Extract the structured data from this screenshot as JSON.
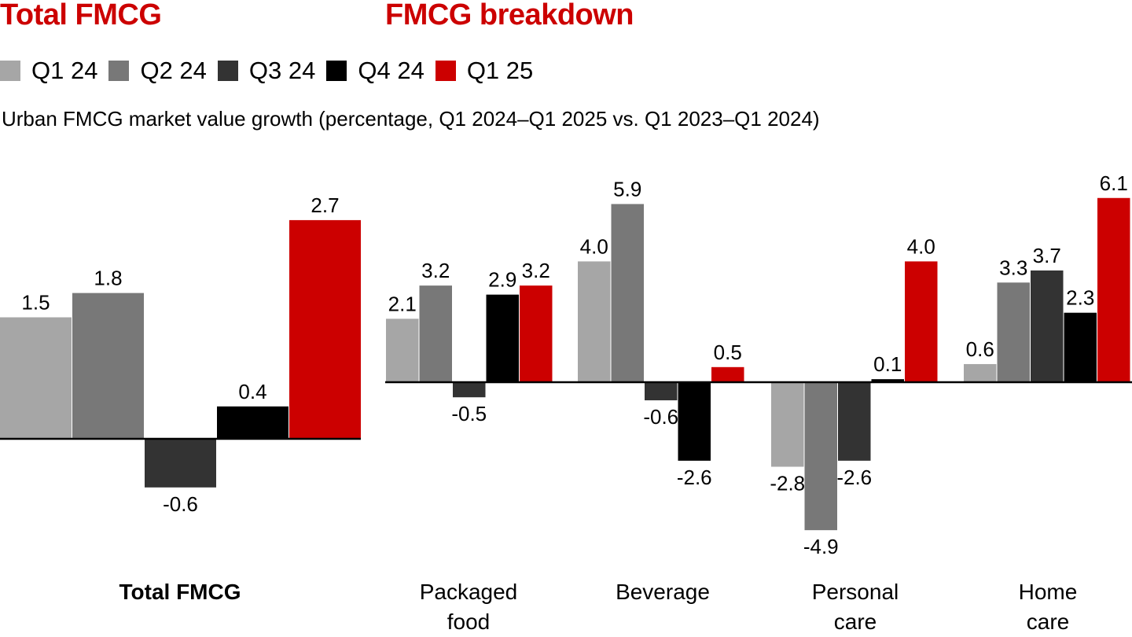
{
  "titles": {
    "left": "Total FMCG",
    "right": "FMCG breakdown"
  },
  "subtitle": "Urban FMCG market value growth (percentage, Q1 2024–Q1 2025 vs. Q1 2023–Q1 2024)",
  "legend": [
    {
      "label": "Q1 24",
      "color": "#a6a6a6"
    },
    {
      "label": "Q2 24",
      "color": "#787878"
    },
    {
      "label": "Q3 24",
      "color": "#333333"
    },
    {
      "label": "Q4 24",
      "color": "#000000"
    },
    {
      "label": "Q1 25",
      "color": "#cc0000"
    }
  ],
  "chart_data": [
    {
      "type": "bar",
      "title": "Total FMCG",
      "categories": [
        "Total FMCG"
      ],
      "series": [
        {
          "name": "Q1 24",
          "values": [
            1.5
          ]
        },
        {
          "name": "Q2 24",
          "values": [
            1.8
          ]
        },
        {
          "name": "Q3 24",
          "values": [
            -0.6
          ]
        },
        {
          "name": "Q4 24",
          "values": [
            0.4
          ]
        },
        {
          "name": "Q1 25",
          "values": [
            2.7
          ]
        }
      ],
      "xlabel": "",
      "ylabel": "Urban FMCG market value growth (%)",
      "grid": false,
      "legend": "top-left"
    },
    {
      "type": "bar",
      "title": "FMCG breakdown",
      "categories": [
        "Packaged food",
        "Beverage",
        "Personal care",
        "Home care"
      ],
      "category_lines": [
        [
          "Packaged",
          "food"
        ],
        [
          "Beverage"
        ],
        [
          "Personal",
          "care"
        ],
        [
          "Home",
          "care"
        ]
      ],
      "series": [
        {
          "name": "Q1 24",
          "values": [
            2.1,
            4.0,
            -2.8,
            0.6
          ]
        },
        {
          "name": "Q2 24",
          "values": [
            3.2,
            5.9,
            -4.9,
            3.3
          ]
        },
        {
          "name": "Q3 24",
          "values": [
            -0.5,
            -0.6,
            -2.6,
            3.7
          ]
        },
        {
          "name": "Q4 24",
          "values": [
            2.9,
            -2.6,
            0.1,
            2.3
          ]
        },
        {
          "name": "Q1 25",
          "values": [
            3.2,
            0.5,
            4.0,
            6.1
          ]
        }
      ],
      "xlabel": "",
      "ylabel": "Urban FMCG market value growth (%)",
      "grid": false,
      "legend": "top-left"
    }
  ]
}
